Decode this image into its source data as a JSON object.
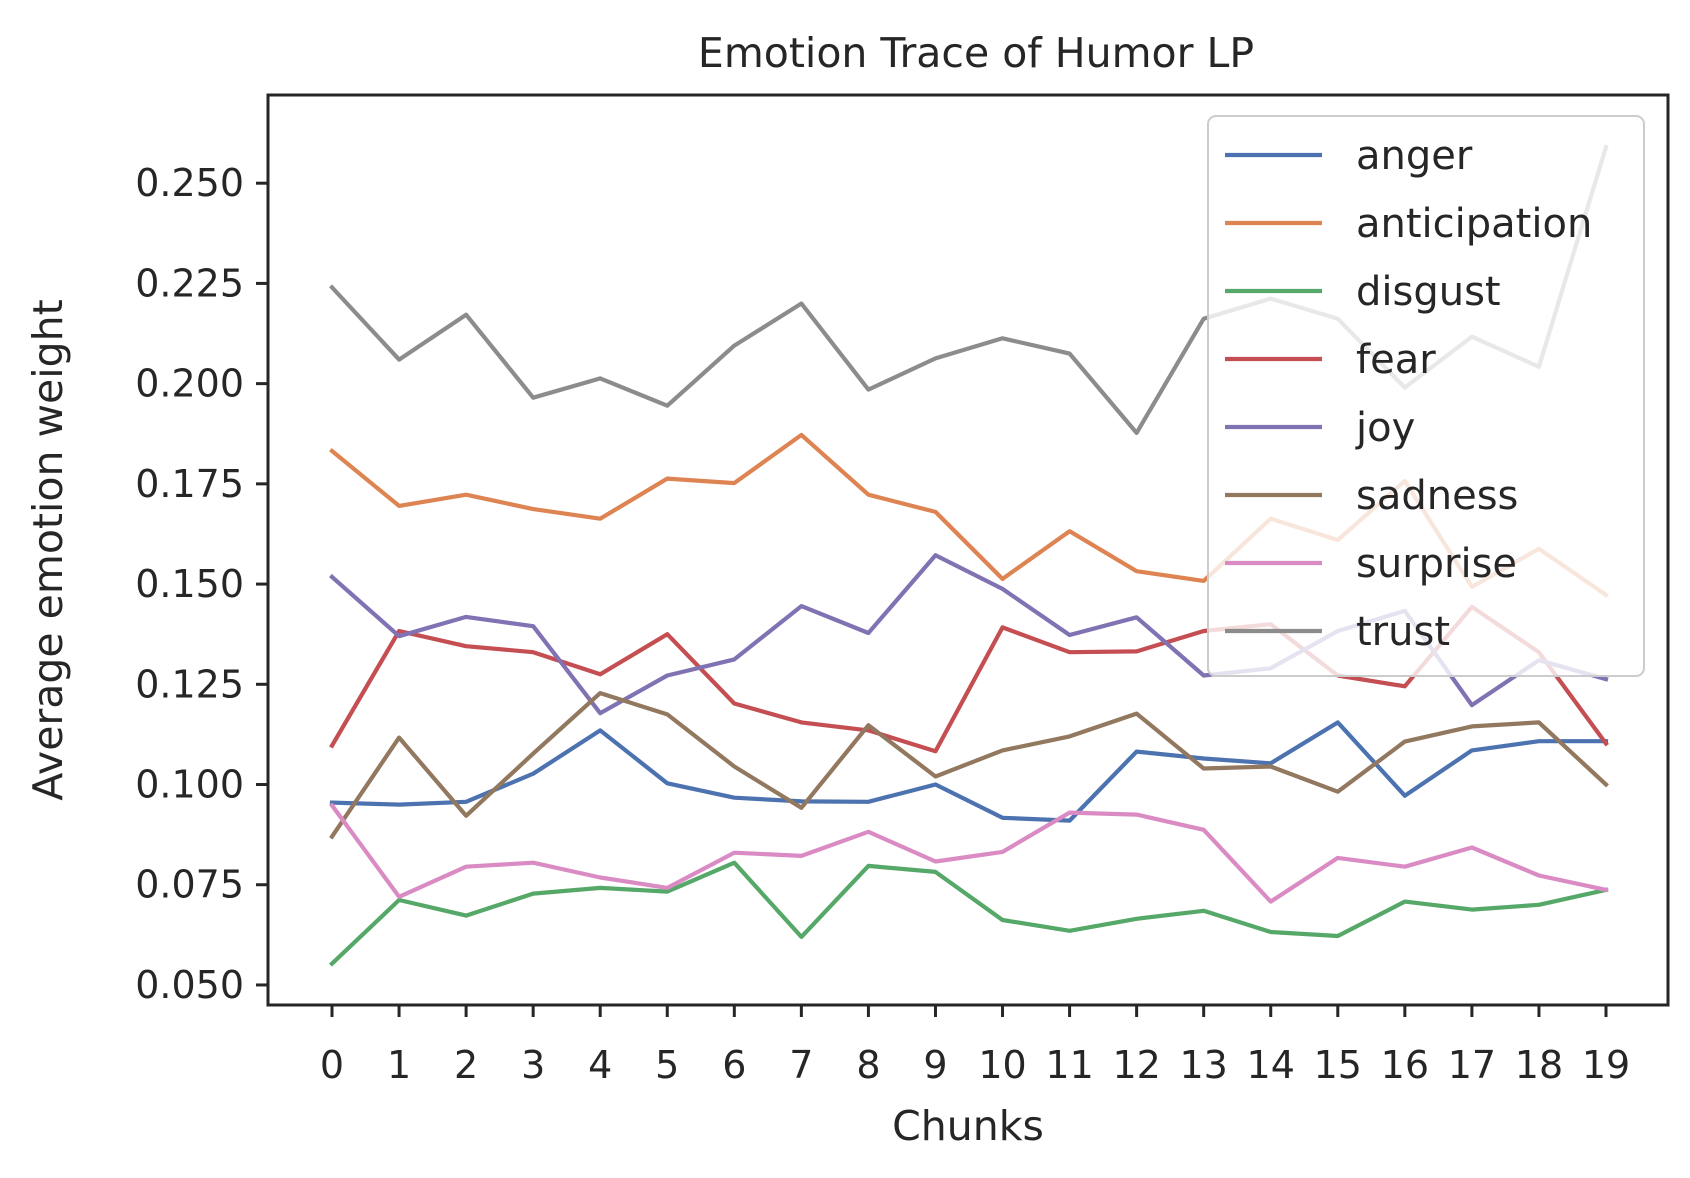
{
  "chart_data": {
    "type": "line",
    "title": "Emotion Trace of Humor LP",
    "xlabel": "Chunks",
    "ylabel": "Average emotion weight",
    "x": [
      0,
      1,
      2,
      3,
      4,
      5,
      6,
      7,
      8,
      9,
      10,
      11,
      12,
      13,
      14,
      15,
      16,
      17,
      18,
      19
    ],
    "x_tick_labels": [
      "0",
      "1",
      "2",
      "3",
      "4",
      "5",
      "6",
      "7",
      "8",
      "9",
      "10",
      "11",
      "12",
      "13",
      "14",
      "15",
      "16",
      "17",
      "18",
      "19"
    ],
    "ylim": [
      0.045,
      0.272
    ],
    "y_ticks": [
      0.05,
      0.075,
      0.1,
      0.125,
      0.15,
      0.175,
      0.2,
      0.225,
      0.25
    ],
    "y_tick_labels": [
      "0.050",
      "0.075",
      "0.100",
      "0.125",
      "0.150",
      "0.175",
      "0.200",
      "0.225",
      "0.250"
    ],
    "grid": false,
    "legend_position": "top-right",
    "series": [
      {
        "name": "anger",
        "color": "#4c72b0",
        "values": [
          0.0955,
          0.095,
          0.0957,
          0.1027,
          0.1135,
          0.1003,
          0.0967,
          0.0958,
          0.0957,
          0.1,
          0.0917,
          0.091,
          0.1082,
          0.1065,
          0.1053,
          0.1155,
          0.0972,
          0.1085,
          0.1108,
          0.1108
        ]
      },
      {
        "name": "anticipation",
        "color": "#dd8452",
        "values": [
          0.1832,
          0.1695,
          0.1723,
          0.1687,
          0.1663,
          0.1763,
          0.1752,
          0.1872,
          0.1723,
          0.168,
          0.1513,
          0.1632,
          0.1532,
          0.1508,
          0.1663,
          0.161,
          0.1757,
          0.1493,
          0.1588,
          0.1473
        ]
      },
      {
        "name": "disgust",
        "color": "#55a868",
        "values": [
          0.0553,
          0.0712,
          0.0673,
          0.0728,
          0.0742,
          0.0733,
          0.0805,
          0.062,
          0.0797,
          0.0782,
          0.0662,
          0.0635,
          0.0665,
          0.0685,
          0.0632,
          0.0622,
          0.0708,
          0.0688,
          0.07,
          0.0737
        ]
      },
      {
        "name": "fear",
        "color": "#c44e52",
        "values": [
          0.1097,
          0.1383,
          0.1345,
          0.133,
          0.1275,
          0.1375,
          0.1202,
          0.1155,
          0.1135,
          0.1083,
          0.1392,
          0.133,
          0.1332,
          0.1383,
          0.14,
          0.1272,
          0.1245,
          0.1443,
          0.133,
          0.1102
        ]
      },
      {
        "name": "joy",
        "color": "#8172b3",
        "values": [
          0.1518,
          0.137,
          0.1418,
          0.1395,
          0.1178,
          0.1272,
          0.1312,
          0.1445,
          0.1378,
          0.1572,
          0.1488,
          0.1373,
          0.1417,
          0.1272,
          0.129,
          0.1383,
          0.1433,
          0.1198,
          0.131,
          0.1263
        ]
      },
      {
        "name": "sadness",
        "color": "#937860",
        "values": [
          0.087,
          0.1117,
          0.0922,
          0.1077,
          0.1228,
          0.1175,
          0.1045,
          0.0942,
          0.1148,
          0.102,
          0.1085,
          0.112,
          0.1177,
          0.104,
          0.1045,
          0.0982,
          0.1107,
          0.1145,
          0.1155,
          0.1
        ]
      },
      {
        "name": "surprise",
        "color": "#da8bc3",
        "values": [
          0.0948,
          0.072,
          0.0795,
          0.0805,
          0.0768,
          0.0742,
          0.083,
          0.0822,
          0.0882,
          0.0808,
          0.0832,
          0.093,
          0.0925,
          0.0887,
          0.0708,
          0.0817,
          0.0795,
          0.0843,
          0.0773,
          0.0737
        ]
      },
      {
        "name": "trust",
        "color": "#8c8c8c",
        "values": [
          0.224,
          0.206,
          0.2172,
          0.1965,
          0.2013,
          0.1945,
          0.2095,
          0.22,
          0.1985,
          0.2063,
          0.2113,
          0.2075,
          0.1877,
          0.2162,
          0.2212,
          0.2162,
          0.199,
          0.2117,
          0.2042,
          0.259
        ]
      }
    ]
  }
}
